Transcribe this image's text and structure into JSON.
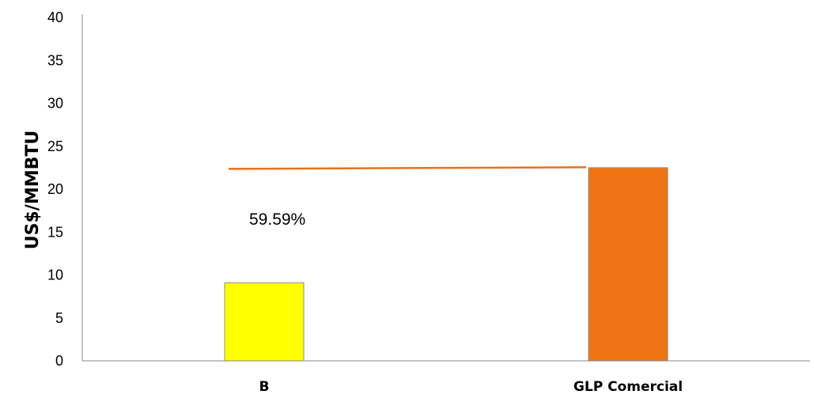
{
  "chart_data": {
    "type": "bar",
    "title": "",
    "xlabel": "",
    "ylabel": "US$/MMBTU",
    "ylim": [
      0,
      40
    ],
    "yticks": [
      0,
      5,
      10,
      15,
      20,
      25,
      30,
      35,
      40
    ],
    "grid": false,
    "categories": [
      "B",
      "GLP Comercial"
    ],
    "values": [
      9.1,
      22.5
    ],
    "bar_colors": [
      "#FFFF00",
      "#F07414"
    ],
    "reference_line": {
      "value": 22.5,
      "color": "#E8711C"
    },
    "annotation": "59.59%"
  }
}
